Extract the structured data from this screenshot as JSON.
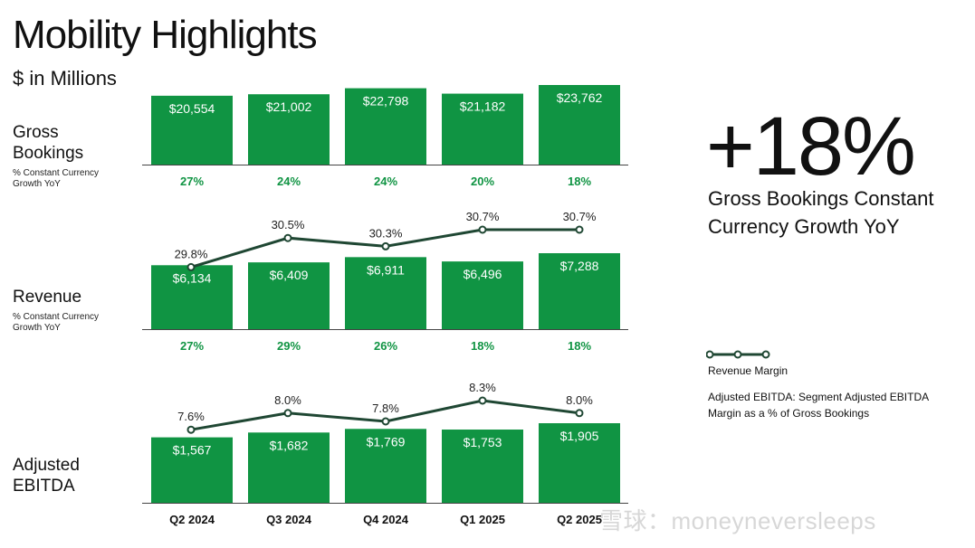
{
  "title": "Mobility Highlights",
  "subtitle": "$ in Millions",
  "rows": {
    "gross_bookings": {
      "label_line1": "Gross",
      "label_line2": "Bookings",
      "sub_line1": "% Constant Currency",
      "sub_line2": "Growth YoY"
    },
    "revenue": {
      "label": "Revenue",
      "sub_line1": "% Constant Currency",
      "sub_line2": "Growth YoY"
    },
    "adjusted_ebitda": {
      "label_line1": "Adjusted",
      "label_line2": "EBITDA"
    }
  },
  "highlight": {
    "value": "+18%",
    "description": "Gross Bookings Constant Currency Growth YoY"
  },
  "legend": {
    "revenue_margin": "Revenue Margin"
  },
  "note": "Adjusted EBITDA: Segment Adjusted EBITDA Margin as a % of Gross Bookings",
  "watermark": "雪球：moneyneversleeps",
  "colors": {
    "bar": "#109443",
    "line": "#1f4733",
    "growth_text": "#109443"
  },
  "chart_data": [
    {
      "type": "bar",
      "name": "Gross Bookings",
      "categories": [
        "Q2 2024",
        "Q3 2024",
        "Q4 2024",
        "Q1 2025",
        "Q2 2025"
      ],
      "values": [
        20554,
        21002,
        22798,
        21182,
        23762
      ],
      "value_labels": [
        "$20,554",
        "$21,002",
        "$22,798",
        "$21,182",
        "$23,762"
      ],
      "growth_labels": [
        "27%",
        "24%",
        "24%",
        "20%",
        "18%"
      ]
    },
    {
      "type": "bar",
      "name": "Revenue",
      "categories": [
        "Q2 2024",
        "Q3 2024",
        "Q4 2024",
        "Q1 2025",
        "Q2 2025"
      ],
      "values": [
        6134,
        6409,
        6911,
        6496,
        7288
      ],
      "value_labels": [
        "$6,134",
        "$6,409",
        "$6,911",
        "$6,496",
        "$7,288"
      ],
      "growth_labels": [
        "27%",
        "29%",
        "26%",
        "18%",
        "18%"
      ],
      "line": {
        "name": "Revenue Margin",
        "values": [
          29.8,
          30.5,
          30.3,
          30.7,
          30.7
        ],
        "labels": [
          "29.8%",
          "30.5%",
          "30.3%",
          "30.7%",
          "30.7%"
        ]
      }
    },
    {
      "type": "bar",
      "name": "Adjusted EBITDA",
      "categories": [
        "Q2 2024",
        "Q3 2024",
        "Q4 2024",
        "Q1 2025",
        "Q2 2025"
      ],
      "values": [
        1567,
        1682,
        1769,
        1753,
        1905
      ],
      "value_labels": [
        "$1,567",
        "$1,682",
        "$1,769",
        "$1,753",
        "$1,905"
      ],
      "line": {
        "name": "Adjusted EBITDA Margin",
        "values": [
          7.6,
          8.0,
          7.8,
          8.3,
          8.0
        ],
        "labels": [
          "7.6%",
          "8.0%",
          "7.8%",
          "8.3%",
          "8.0%"
        ]
      }
    }
  ]
}
